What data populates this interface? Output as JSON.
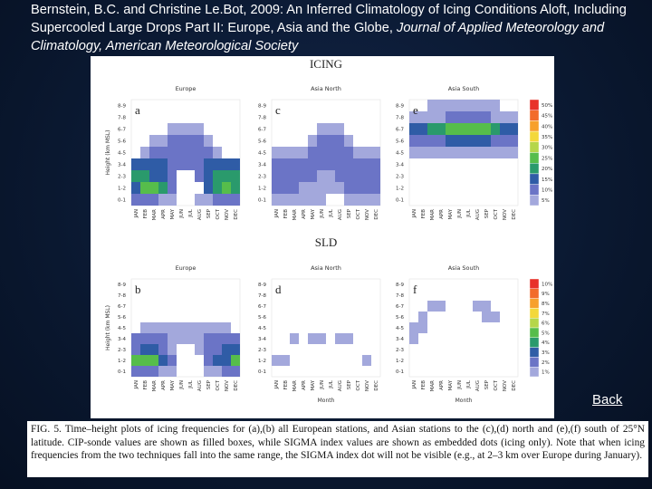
{
  "citation": {
    "text": "Bernstein, B.C. and Christine Le.Bot, 2009: An Inferred Climatology of Icing Conditions Aloft, Including Supercooled Large Drops Part II: Europe, Asia and the Globe,",
    "journal": "Journal of Applied Meteorology and Climatology, American Meteorological Society"
  },
  "figure": {
    "title_top": "ICING",
    "title_bottom": "SLD",
    "y_label": "Height (km MSL)",
    "x_label": "Month",
    "months": [
      "JAN",
      "FEB",
      "MAR",
      "APR",
      "MAY",
      "JUN",
      "JUL",
      "AUG",
      "SEP",
      "OCT",
      "NOV",
      "DEC"
    ],
    "heights": [
      "8-9",
      "7-8",
      "6-7",
      "5-6",
      "4-5",
      "3-4",
      "2-3",
      "1-2",
      "0-1"
    ],
    "icing_scale": {
      "ticks": [
        {
          "value": 50,
          "label": "50%"
        },
        {
          "value": 45,
          "label": "45%"
        },
        {
          "value": 40,
          "label": "40%"
        },
        {
          "value": 35,
          "label": "35%"
        },
        {
          "value": 30,
          "label": "30%"
        },
        {
          "value": 25,
          "label": "25%"
        },
        {
          "value": 20,
          "label": "20%"
        },
        {
          "value": 15,
          "label": "15%"
        },
        {
          "value": 10,
          "label": "10%"
        },
        {
          "value": 5,
          "label": "5%"
        }
      ],
      "colors": [
        "#e8312a",
        "#f26b2a",
        "#f7a02c",
        "#f3d83a",
        "#b5d64a",
        "#56bd4b",
        "#2a9a6c",
        "#2f5ca6",
        "#6b74c6",
        "#a3a8dc"
      ]
    },
    "sld_scale": {
      "ticks": [
        {
          "value": 10,
          "label": "10%"
        },
        {
          "value": 9,
          "label": "9%"
        },
        {
          "value": 8,
          "label": "8%"
        },
        {
          "value": 7,
          "label": "7%"
        },
        {
          "value": 6,
          "label": "6%"
        },
        {
          "value": 5,
          "label": "5%"
        },
        {
          "value": 4,
          "label": "4%"
        },
        {
          "value": 3,
          "label": "3%"
        },
        {
          "value": 2,
          "label": "2%"
        },
        {
          "value": 1,
          "label": "1%"
        }
      ],
      "colors": [
        "#e8312a",
        "#f26b2a",
        "#f7a02c",
        "#f3d83a",
        "#b5d64a",
        "#56bd4b",
        "#2a9a6c",
        "#2f5ca6",
        "#6b74c6",
        "#a3a8dc"
      ]
    },
    "panels": [
      {
        "letter": "a",
        "region": "Europe",
        "values": [
          [
            null,
            null,
            null,
            null,
            null,
            null,
            null,
            null,
            null,
            null,
            null,
            null
          ],
          [
            null,
            null,
            null,
            null,
            null,
            null,
            null,
            null,
            null,
            null,
            null,
            null
          ],
          [
            null,
            null,
            null,
            null,
            5,
            5,
            5,
            5,
            null,
            null,
            null,
            null
          ],
          [
            null,
            null,
            5,
            5,
            10,
            10,
            10,
            10,
            5,
            null,
            null,
            null
          ],
          [
            null,
            5,
            10,
            10,
            10,
            10,
            10,
            10,
            10,
            5,
            null,
            null
          ],
          [
            15,
            15,
            15,
            15,
            10,
            10,
            10,
            10,
            15,
            15,
            15,
            15
          ],
          [
            20,
            20,
            15,
            15,
            10,
            null,
            null,
            10,
            15,
            20,
            20,
            20
          ],
          [
            15,
            25,
            25,
            20,
            10,
            null,
            null,
            null,
            15,
            20,
            25,
            20
          ],
          [
            10,
            10,
            10,
            5,
            5,
            null,
            null,
            5,
            5,
            10,
            10,
            10
          ]
        ]
      },
      {
        "letter": "c",
        "region": "Asia North",
        "values": [
          [
            null,
            null,
            null,
            null,
            null,
            null,
            null,
            null,
            null,
            null,
            null,
            null
          ],
          [
            null,
            null,
            null,
            null,
            null,
            null,
            null,
            null,
            null,
            null,
            null,
            null
          ],
          [
            null,
            null,
            null,
            null,
            null,
            5,
            5,
            5,
            null,
            null,
            null,
            null
          ],
          [
            null,
            null,
            null,
            null,
            5,
            10,
            10,
            10,
            5,
            null,
            null,
            null
          ],
          [
            5,
            5,
            5,
            5,
            10,
            10,
            10,
            10,
            10,
            5,
            5,
            5
          ],
          [
            10,
            10,
            10,
            10,
            10,
            10,
            10,
            10,
            10,
            10,
            10,
            10
          ],
          [
            10,
            10,
            10,
            10,
            10,
            5,
            5,
            10,
            10,
            10,
            10,
            10
          ],
          [
            10,
            10,
            10,
            5,
            5,
            5,
            5,
            5,
            10,
            10,
            10,
            10
          ],
          [
            5,
            5,
            5,
            5,
            5,
            5,
            null,
            null,
            5,
            5,
            5,
            5
          ]
        ]
      },
      {
        "letter": "e",
        "region": "Asia South",
        "values": [
          [
            null,
            null,
            5,
            5,
            5,
            5,
            5,
            5,
            5,
            5,
            null,
            null
          ],
          [
            5,
            5,
            5,
            5,
            10,
            10,
            10,
            10,
            10,
            5,
            5,
            5
          ],
          [
            15,
            15,
            20,
            20,
            25,
            25,
            25,
            25,
            25,
            20,
            15,
            15
          ],
          [
            10,
            10,
            10,
            10,
            15,
            15,
            15,
            15,
            15,
            10,
            10,
            10
          ],
          [
            5,
            5,
            5,
            5,
            5,
            5,
            5,
            5,
            5,
            5,
            5,
            5
          ],
          [
            null,
            null,
            null,
            null,
            null,
            null,
            null,
            null,
            null,
            null,
            null,
            null
          ],
          [
            null,
            null,
            null,
            null,
            null,
            null,
            null,
            null,
            null,
            null,
            null,
            null
          ],
          [
            null,
            null,
            null,
            null,
            null,
            null,
            null,
            null,
            null,
            null,
            null,
            null
          ],
          [
            null,
            null,
            null,
            null,
            null,
            null,
            null,
            null,
            null,
            null,
            null,
            null
          ]
        ]
      },
      {
        "letter": "b",
        "region": "Europe",
        "values": [
          [
            null,
            null,
            null,
            null,
            null,
            null,
            null,
            null,
            null,
            null,
            null,
            null
          ],
          [
            null,
            null,
            null,
            null,
            null,
            null,
            null,
            null,
            null,
            null,
            null,
            null
          ],
          [
            null,
            null,
            null,
            null,
            null,
            null,
            null,
            null,
            null,
            null,
            null,
            null
          ],
          [
            null,
            null,
            null,
            null,
            null,
            null,
            null,
            null,
            null,
            null,
            null,
            null
          ],
          [
            null,
            1,
            1,
            1,
            1,
            1,
            1,
            1,
            1,
            1,
            1,
            null
          ],
          [
            2,
            2,
            2,
            2,
            1,
            1,
            1,
            1,
            2,
            2,
            2,
            2
          ],
          [
            2,
            3,
            3,
            2,
            1,
            null,
            null,
            1,
            2,
            2,
            3,
            3
          ],
          [
            5,
            5,
            5,
            3,
            2,
            null,
            null,
            null,
            2,
            3,
            3,
            5
          ],
          [
            2,
            2,
            2,
            1,
            1,
            null,
            null,
            null,
            1,
            1,
            2,
            2
          ]
        ]
      },
      {
        "letter": "d",
        "region": "Asia North",
        "values": [
          [
            null,
            null,
            null,
            null,
            null,
            null,
            null,
            null,
            null,
            null,
            null,
            null
          ],
          [
            null,
            null,
            null,
            null,
            null,
            null,
            null,
            null,
            null,
            null,
            null,
            null
          ],
          [
            null,
            null,
            null,
            null,
            null,
            null,
            null,
            null,
            null,
            null,
            null,
            null
          ],
          [
            null,
            null,
            null,
            null,
            null,
            null,
            null,
            null,
            null,
            null,
            null,
            null
          ],
          [
            null,
            null,
            null,
            null,
            null,
            null,
            null,
            null,
            null,
            null,
            null,
            null
          ],
          [
            null,
            null,
            1,
            null,
            1,
            1,
            null,
            1,
            1,
            null,
            null,
            null
          ],
          [
            null,
            null,
            null,
            null,
            null,
            null,
            null,
            null,
            null,
            null,
            null,
            null
          ],
          [
            1,
            1,
            null,
            null,
            null,
            null,
            null,
            null,
            null,
            null,
            1,
            null
          ],
          [
            null,
            null,
            null,
            null,
            null,
            null,
            null,
            null,
            null,
            null,
            null,
            null
          ]
        ]
      },
      {
        "letter": "f",
        "region": "Asia South",
        "values": [
          [
            null,
            null,
            null,
            null,
            null,
            null,
            null,
            null,
            null,
            null,
            null,
            null
          ],
          [
            null,
            null,
            null,
            null,
            null,
            null,
            null,
            null,
            null,
            null,
            null,
            null
          ],
          [
            null,
            null,
            1,
            1,
            null,
            null,
            null,
            1,
            1,
            null,
            null,
            null
          ],
          [
            null,
            1,
            null,
            null,
            null,
            null,
            null,
            null,
            1,
            1,
            null,
            null
          ],
          [
            1,
            1,
            null,
            null,
            null,
            null,
            null,
            null,
            null,
            null,
            null,
            null
          ],
          [
            1,
            null,
            null,
            null,
            null,
            null,
            null,
            null,
            null,
            null,
            null,
            null
          ],
          [
            null,
            null,
            null,
            null,
            null,
            null,
            null,
            null,
            null,
            null,
            null,
            null
          ],
          [
            null,
            null,
            null,
            null,
            null,
            null,
            null,
            null,
            null,
            null,
            null,
            null
          ],
          [
            null,
            null,
            null,
            null,
            null,
            null,
            null,
            null,
            null,
            null,
            null,
            null
          ]
        ]
      }
    ]
  },
  "back": "Back",
  "caption": "FIG. 5. Time–height plots of icing frequencies for (a),(b) all European stations, and Asian stations to the (c),(d) north and (e),(f) south of 25°N latitude. CIP-sonde values are shown as filled boxes, while SIGMA index values are shown as embedded dots (icing only). Note that when icing frequencies from the two techniques fall into the same range, the SIGMA index dot will not be visible (e.g., at 2–3 km over Europe during January)."
}
